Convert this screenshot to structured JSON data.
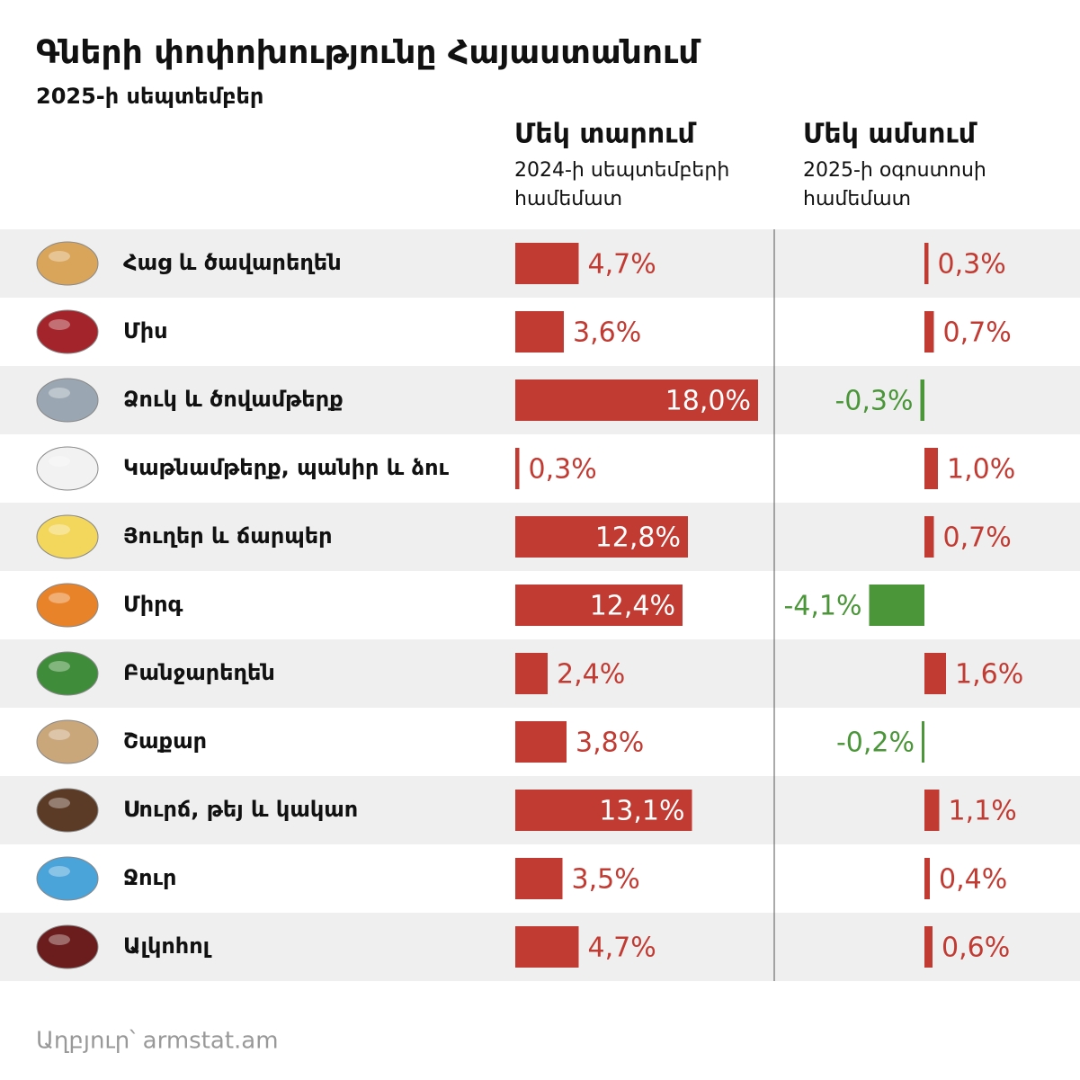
{
  "chart_data": {
    "type": "bar",
    "title": "Գների փոփոխությունը Հայաստանում",
    "subtitle": "2025-ի սեպտեմբեր",
    "categories": [
      "Հաց և ծավարեղեն",
      "Միս",
      "Ձուկ և ծովամթերք",
      "Կաթնամթերք, պանիր և ձու",
      "Յուղեր և ճարպեր",
      "Միրգ",
      "Բանջարեղեն",
      "Շաքար",
      "Սուրճ, թեյ և կակաո",
      "Ջուր",
      "Ալկոհոլ"
    ],
    "series": [
      {
        "name": "Մեկ տարում",
        "description": [
          "2024-ի սեպտեմբերի",
          "համեմատ"
        ],
        "color": "#c23b33",
        "negative_color": "#4a9639",
        "values": [
          4.7,
          3.6,
          18.0,
          0.3,
          12.8,
          12.4,
          2.4,
          3.8,
          13.1,
          3.5,
          4.7
        ],
        "value_labels": [
          "4,7%",
          "3,6%",
          "18,0%",
          "0,3%",
          "12,8%",
          "12,4%",
          "2,4%",
          "3,8%",
          "13,1%",
          "3,5%",
          "4,7%"
        ]
      },
      {
        "name": "Մեկ ամսում",
        "description": [
          "2025-ի օգոստոսի",
          "համեմատ"
        ],
        "color": "#c23b33",
        "negative_color": "#4a9639",
        "values": [
          0.3,
          0.7,
          -0.3,
          1.0,
          0.7,
          -4.1,
          1.6,
          -0.2,
          1.1,
          0.4,
          0.6
        ],
        "value_labels": [
          "0,3%",
          "0,7%",
          "-0,3%",
          "1,0%",
          "0,7%",
          "-4,1%",
          "1,6%",
          "-0,2%",
          "1,1%",
          "0,4%",
          "0,6%"
        ]
      }
    ],
    "source": "Աղբյուր՝ armstat.am"
  }
}
